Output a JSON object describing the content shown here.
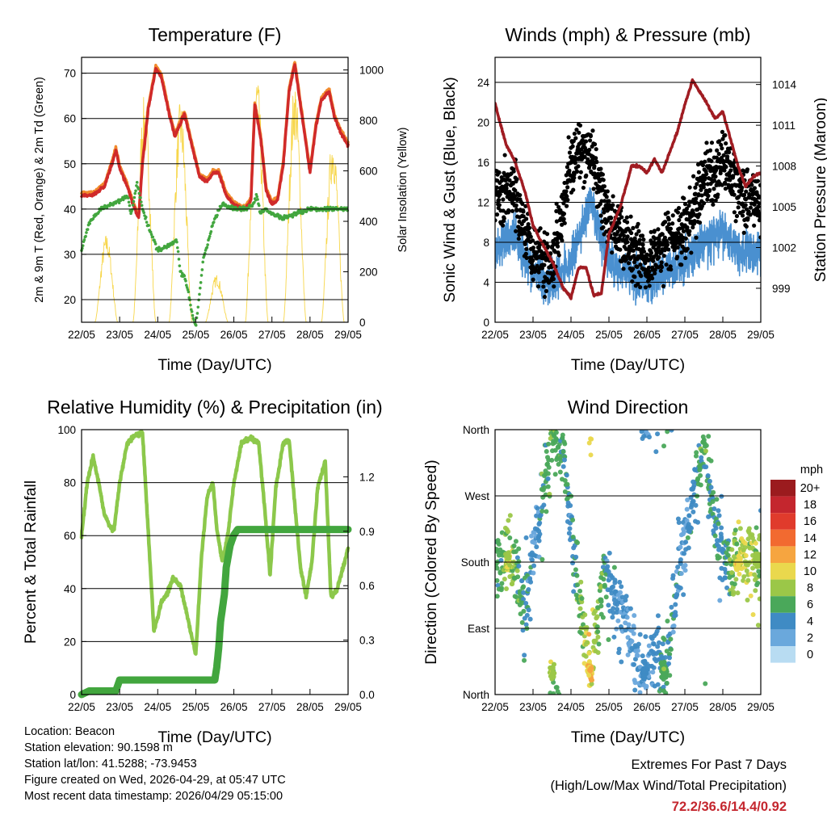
{
  "x_ticks": [
    "22/05",
    "23/05",
    "24/05",
    "25/05",
    "26/05",
    "27/05",
    "28/05",
    "29/05"
  ],
  "x_label": "Time (Day/UTC)",
  "panels": {
    "temperature": {
      "title": "Temperature (F)",
      "ylabel_left": "2m & 9m T (Red, Orange) & 2m Td (Green)",
      "ylabel_right": "Solar Insolation (Yellow)",
      "yticks_left": [
        "20",
        "30",
        "40",
        "50",
        "60",
        "70"
      ],
      "yticks_right": [
        "0",
        "200",
        "400",
        "600",
        "800",
        "1000"
      ]
    },
    "winds": {
      "title": "Winds (mph) & Pressure (mb)",
      "ylabel_left": "Sonic Wind & Gust (Blue, Black)",
      "ylabel_right": "Station Pressure (Maroon)",
      "yticks_left": [
        "0",
        "4",
        "8",
        "12",
        "16",
        "20",
        "24"
      ],
      "yticks_right": [
        "999",
        "1002",
        "1005",
        "1008",
        "1011",
        "1014"
      ]
    },
    "humidity": {
      "title": "Relative Humidity (%) & Precipitation (in)",
      "ylabel_left": "Percent & Total Rainfall",
      "yticks_left": [
        "0",
        "20",
        "40",
        "60",
        "80",
        "100"
      ],
      "yticks_right": [
        "0.0",
        "0.3",
        "0.6",
        "0.9",
        "1.2"
      ]
    },
    "direction": {
      "title": "Wind Direction",
      "ylabel_left": "Direction (Colored By Speed)",
      "yticks_left": [
        "North",
        "East",
        "South",
        "West",
        "North"
      ],
      "legend_title": "mph",
      "legend_labels": [
        "20+",
        "18",
        "16",
        "14",
        "12",
        "10",
        "8",
        "6",
        "4",
        "2",
        "0"
      ],
      "legend_colors": [
        "#9b1b1e",
        "#c4262e",
        "#e03b2c",
        "#f26a30",
        "#f6a540",
        "#ead84d",
        "#9bc748",
        "#4aa85a",
        "#3f8bc4",
        "#6aa8dc",
        "#b8dcf2"
      ]
    }
  },
  "chart_data": [
    {
      "type": "line",
      "title": "Temperature (F)",
      "xlabel": "Time (Day/UTC)",
      "x_range_days": [
        0,
        7
      ],
      "ylim_left": [
        15,
        73.5
      ],
      "ylim_right": [
        0,
        1050
      ],
      "series": [
        {
          "name": "2m T",
          "color": "#d02a2a",
          "x": [
            0,
            0.3,
            0.6,
            0.8,
            0.9,
            1,
            1.2,
            1.35,
            1.5,
            1.6,
            1.75,
            1.95,
            2.1,
            2.3,
            2.45,
            2.6,
            2.7,
            2.9,
            3.1,
            3.3,
            3.45,
            3.6,
            3.8,
            4,
            4.2,
            4.3,
            4.45,
            4.55,
            4.7,
            4.85,
            5,
            5.15,
            5.3,
            5.45,
            5.6,
            5.8,
            6,
            6.15,
            6.3,
            6.5,
            6.65,
            6.8,
            7
          ],
          "y": [
            43,
            43,
            45,
            50,
            53,
            49,
            45,
            41,
            38,
            50,
            62,
            71,
            69,
            61,
            56,
            59,
            61,
            54,
            47,
            46,
            48,
            48,
            43,
            41,
            40,
            40,
            42,
            63,
            56,
            44,
            41,
            42,
            50,
            66,
            72,
            60,
            48,
            58,
            64,
            66,
            60,
            57,
            54
          ]
        },
        {
          "name": "9m T",
          "color": "#f18a2d",
          "x": [
            0,
            0.6,
            0.9,
            1.35,
            1.6,
            1.95,
            2.45,
            2.7,
            3.1,
            3.45,
            4,
            4.55,
            4.85,
            5.3,
            5.6,
            6,
            6.5,
            7
          ],
          "y": [
            44,
            46,
            52,
            39,
            52,
            70,
            57,
            60,
            48,
            47,
            41,
            62,
            45,
            51,
            71,
            49,
            65,
            55
          ]
        },
        {
          "name": "2m Td",
          "color": "#42a63e",
          "x": [
            0,
            0.2,
            0.5,
            0.8,
            1,
            1.2,
            1.3,
            1.4,
            1.45,
            1.6,
            1.8,
            2,
            2.3,
            2.5,
            2.6,
            2.7,
            2.8,
            2.9,
            3,
            3.2,
            3.5,
            3.7,
            4,
            4.2,
            4.35,
            4.5,
            4.6,
            4.7,
            4.85,
            5,
            5.3,
            5.6,
            6,
            6.5,
            7
          ],
          "y": [
            31,
            37,
            40,
            41,
            42,
            43,
            39,
            43,
            46,
            40,
            35,
            31,
            32,
            33,
            26,
            25,
            22,
            17,
            14,
            29,
            38,
            41,
            40,
            40,
            40,
            41,
            43,
            39,
            40,
            39,
            38,
            39,
            40,
            40,
            40
          ]
        },
        {
          "name": "Solar Insolation",
          "color": "#f7d64a",
          "axis": "right",
          "peaks_day": [
            0.65,
            1.65,
            2.6,
            3.55,
            4.6,
            5.6,
            6.6
          ],
          "peaks_value": [
            350,
            900,
            880,
            190,
            1000,
            960,
            750
          ]
        }
      ]
    },
    {
      "type": "line",
      "title": "Winds (mph) & Pressure (mb)",
      "xlabel": "Time (Day/UTC)",
      "x_range_days": [
        0,
        7
      ],
      "ylim_left": [
        0,
        26.5
      ],
      "ylim_right": [
        996.5,
        1016
      ],
      "series": [
        {
          "name": "Sonic Wind",
          "color": "#4a90d0",
          "x": [
            0,
            0.5,
            1,
            1.5,
            2,
            2.5,
            3,
            3.5,
            4,
            4.5,
            5,
            5.5,
            6,
            6.5,
            7
          ],
          "y": [
            7,
            9,
            5,
            4,
            6,
            12,
            6,
            5,
            4,
            5,
            6,
            8,
            9,
            7,
            7
          ]
        },
        {
          "name": "Gust",
          "color": "#000000",
          "x": [
            0,
            0.5,
            1,
            1.5,
            2,
            2.5,
            3,
            3.5,
            4,
            4.5,
            5,
            5.5,
            6,
            6.5,
            7
          ],
          "y": [
            13,
            13,
            7,
            6,
            16,
            17,
            10,
            8,
            6,
            8,
            9,
            14,
            16,
            13,
            12
          ]
        },
        {
          "name": "Station Pressure",
          "color": "#a01c22",
          "axis": "right",
          "x": [
            0,
            0.1,
            0.3,
            0.5,
            0.8,
            1,
            1.3,
            1.5,
            1.8,
            2,
            2.2,
            2.4,
            2.6,
            2.8,
            3,
            3.3,
            3.6,
            3.8,
            4,
            4.2,
            4.4,
            4.6,
            4.8,
            5,
            5.2,
            5.5,
            5.8,
            6,
            6.2,
            6.4,
            6.6,
            6.8,
            7
          ],
          "y": [
            1012.6,
            1011.5,
            1009.5,
            1008.5,
            1006,
            1003.6,
            1002,
            1001,
            999,
            998.3,
            1000.5,
            1000.5,
            998.5,
            998.6,
            1003,
            1005,
            1008,
            1008,
            1007.5,
            1008.5,
            1007.5,
            1009,
            1010.5,
            1012.5,
            1014.3,
            1013,
            1011.5,
            1012,
            1010,
            1008,
            1006.5,
            1007.2,
            1007.5
          ]
        }
      ]
    },
    {
      "type": "line",
      "title": "Relative Humidity (%) & Precipitation (in)",
      "xlabel": "Time (Day/UTC)",
      "x_range_days": [
        0,
        7
      ],
      "ylim_left": [
        0,
        100
      ],
      "ylim_right": [
        0,
        1.46
      ],
      "series": [
        {
          "name": "Relative Humidity",
          "color": "#8cc84b",
          "x": [
            0,
            0.15,
            0.3,
            0.45,
            0.6,
            0.75,
            0.85,
            1,
            1.2,
            1.4,
            1.6,
            1.75,
            1.9,
            2.1,
            2.25,
            2.4,
            2.6,
            2.8,
            3,
            3.15,
            3.3,
            3.45,
            3.55,
            3.7,
            3.85,
            4,
            4.2,
            4.45,
            4.65,
            4.8,
            4.95,
            5.1,
            5.3,
            5.45,
            5.6,
            5.75,
            5.9,
            6.05,
            6.2,
            6.4,
            6.55,
            6.7,
            6.85,
            7
          ],
          "y": [
            60,
            80,
            90,
            80,
            68,
            63,
            62,
            80,
            95,
            98,
            99,
            62,
            24,
            35,
            38,
            44,
            41,
            28,
            15,
            52,
            75,
            80,
            63,
            50,
            61,
            80,
            95,
            97,
            95,
            72,
            45,
            78,
            95,
            96,
            72,
            48,
            37,
            50,
            78,
            88,
            37,
            39,
            47,
            55
          ]
        },
        {
          "name": "Total Precipitation",
          "color": "#42a63e",
          "axis": "right",
          "x": [
            0,
            0.2,
            0.9,
            1,
            2,
            3,
            3.5,
            3.55,
            3.6,
            3.65,
            3.75,
            3.8,
            3.9,
            4,
            4.1,
            5,
            6,
            7
          ],
          "y": [
            0,
            0.02,
            0.02,
            0.08,
            0.08,
            0.08,
            0.08,
            0.15,
            0.25,
            0.4,
            0.55,
            0.7,
            0.82,
            0.88,
            0.91,
            0.91,
            0.91,
            0.91
          ]
        }
      ]
    },
    {
      "type": "scatter",
      "title": "Wind Direction",
      "xlabel": "Time (Day/UTC)",
      "ylabel": "Direction (Colored By Speed)",
      "x_range_days": [
        0,
        7
      ],
      "y_categories": [
        "North",
        "East",
        "South",
        "West",
        "North"
      ],
      "color_scale_mph": [
        0,
        2,
        4,
        6,
        8,
        10,
        12,
        14,
        16,
        18,
        20
      ],
      "clusters": [
        {
          "day": 0.35,
          "direction": "South",
          "speed_mph": 9
        },
        {
          "day": 1.5,
          "direction": "North",
          "speed_mph": 8
        },
        {
          "day": 2.5,
          "direction": "North",
          "speed_mph": 11
        },
        {
          "day": 3.95,
          "direction": "North",
          "speed_mph": 4
        },
        {
          "day": 4.45,
          "direction": "North",
          "speed_mph": 6
        },
        {
          "day": 6.4,
          "direction": "South",
          "speed_mph": 10
        },
        {
          "day": 6.9,
          "direction": "South",
          "speed_mph": 8
        }
      ]
    }
  ],
  "station_info": {
    "location": "Location: Beacon",
    "elevation": "Station elevation: 90.1598 m",
    "latlon": "Station lat/lon: 41.5288; -73.9453",
    "created": "Figure created on Wed, 2026-04-29, at 05:47 UTC",
    "recent": "Most recent data timestamp: 2026/04/29 05:15:00"
  },
  "extremes": {
    "title": "Extremes For Past 7 Days",
    "subtitle": "(High/Low/Max Wind/Total Precipitation)",
    "values": "72.2/36.6/14.4/0.92"
  }
}
